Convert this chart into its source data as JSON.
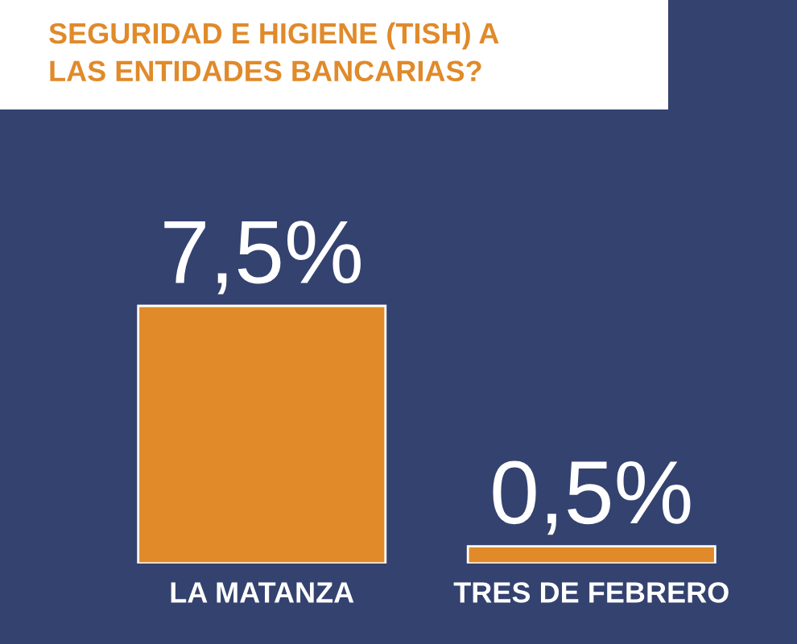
{
  "chart_data": {
    "type": "bar",
    "title": "SEGURIDAD E HIGIENE (TISH) A\nLAS ENTIDADES BANCARIAS?",
    "categories": [
      "LA MATANZA",
      "TRES DE FEBRERO"
    ],
    "values": [
      7.5,
      0.5
    ],
    "value_labels": [
      "7,5%",
      "0,5%"
    ],
    "color": "#e08a2a",
    "grid": false
  }
}
